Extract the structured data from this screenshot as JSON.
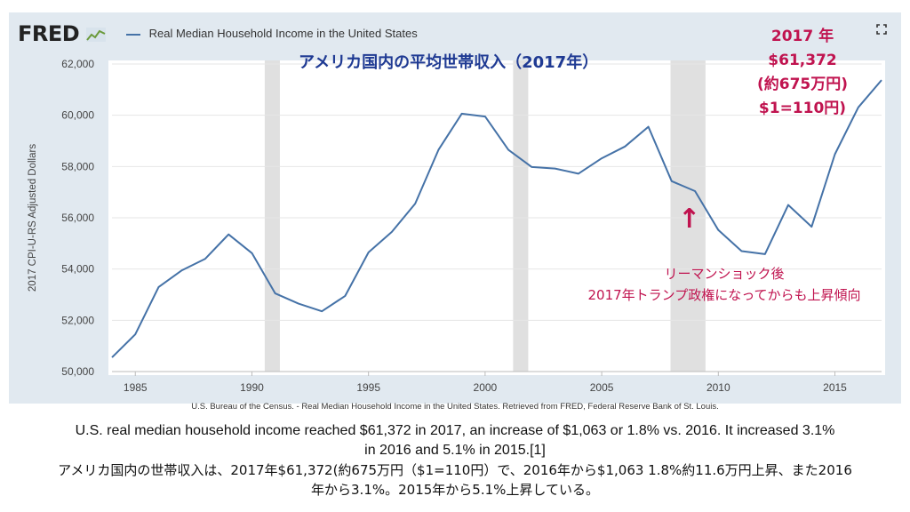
{
  "header": {
    "logo_text": "FRED",
    "legend_label": "Real Median Household Income in the United States",
    "expand_icon": "expand-icon",
    "logo_icon": "chart-line-icon"
  },
  "annotations": {
    "jp_title": "アメリカ国内の平均世帯収入（2017年）",
    "callout_lines": [
      "2017 年",
      "$61,372",
      "(約675万円)",
      "$1=110円)"
    ],
    "lehman_lines": [
      "リーマンショック後",
      "2017年トランプ政権になってからも上昇傾向"
    ],
    "arrow": "↑"
  },
  "source_text": "U.S. Bureau of the Census. - Real Median Household Income in the United States. Retrieved from FRED, Federal Reserve Bank of St. Louis.",
  "caption_en": "U.S. real median household income reached $61,372 in 2017, an increase of $1,063 or 1.8% vs. 2016. It increased 3.1% in 2016 and 5.1% in 2015.[1]",
  "caption_jp": "アメリカ国内の世帯収入は、2017年$61,372(約675万円（$1=110円）で、2016年から$1,063 1.8%約11.6万円上昇、また2016年から3.1%。2015年から5.1%上昇している。",
  "colors": {
    "line": "#4572a7",
    "panel": "#e1e9f0",
    "recession": "#e0e0e0",
    "accent": "#c0134f",
    "title": "#1f3a93"
  },
  "chart_data": {
    "type": "line",
    "title": "Real Median Household Income in the United States",
    "xlabel": "",
    "ylabel": "2017 CPI-U-RS Adjusted Dollars",
    "xlim": [
      1984,
      2017
    ],
    "ylim": [
      50000,
      62000
    ],
    "x_ticks": [
      1985,
      1990,
      1995,
      2000,
      2005,
      2010,
      2015
    ],
    "y_ticks": [
      50000,
      52000,
      54000,
      56000,
      58000,
      60000,
      62000
    ],
    "y_tick_labels": [
      "50,000",
      "52,000",
      "54,000",
      "56,000",
      "58,000",
      "60,000",
      "62,000"
    ],
    "recessions": [
      [
        1990.55,
        1991.2
      ],
      [
        2001.2,
        2001.85
      ],
      [
        2007.95,
        2009.45
      ]
    ],
    "series": [
      {
        "name": "Real Median Household Income in the United States",
        "x": [
          1984,
          1985,
          1986,
          1987,
          1988,
          1989,
          1990,
          1991,
          1992,
          1993,
          1994,
          1995,
          1996,
          1997,
          1998,
          1999,
          2000,
          2001,
          2002,
          2003,
          2004,
          2005,
          2006,
          2007,
          2008,
          2009,
          2010,
          2011,
          2012,
          2013,
          2014,
          2015,
          2016,
          2017
        ],
        "values": [
          50550,
          51450,
          53300,
          53950,
          54400,
          55350,
          54620,
          53050,
          52650,
          52350,
          52950,
          54650,
          55450,
          56550,
          58650,
          60060,
          59950,
          58650,
          57980,
          57920,
          57720,
          58320,
          58780,
          59550,
          57430,
          57040,
          55520,
          54700,
          54580,
          56500,
          55650,
          58480,
          60309,
          61372
        ]
      }
    ]
  }
}
